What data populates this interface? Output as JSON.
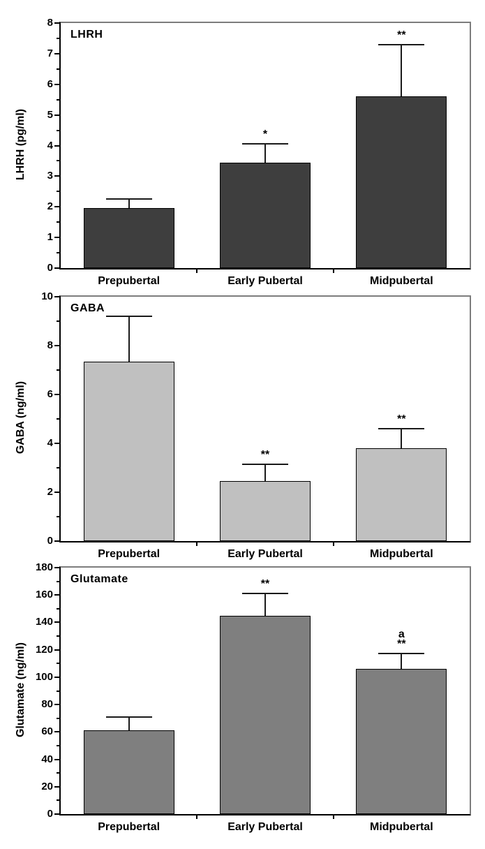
{
  "figure": {
    "background": "#ffffff",
    "text_color": "#000000",
    "frame_dark": "#000000",
    "frame_light": "#7d7d7d"
  },
  "chart_data": [
    {
      "type": "bar",
      "title": "LHRH",
      "ylabel": "LHRH (pg/ml)",
      "xlabel": "",
      "categories": [
        "Prepubertal",
        "Early Pubertal",
        "Midpubertal"
      ],
      "values": [
        1.95,
        3.45,
        5.6
      ],
      "errors_up": [
        0.3,
        0.6,
        1.7
      ],
      "annotations": [
        [],
        [
          "*"
        ],
        [
          "**"
        ]
      ],
      "bar_color": "#3e3e3e",
      "ylim": [
        0,
        8
      ],
      "ytick_major": 1,
      "ytick_minor": 0.5,
      "grid": "off",
      "legend": "none"
    },
    {
      "type": "bar",
      "title": "GABA",
      "ylabel": "GABA (ng/ml)",
      "xlabel": "",
      "categories": [
        "Prepubertal",
        "Early Pubertal",
        "Midpubertal"
      ],
      "values": [
        7.35,
        2.45,
        3.8
      ],
      "errors_up": [
        1.85,
        0.7,
        0.8
      ],
      "annotations": [
        [],
        [
          "**"
        ],
        [
          "**"
        ]
      ],
      "bar_color": "#c0c0c0",
      "ylim": [
        0,
        10
      ],
      "ytick_major": 2,
      "ytick_minor": 1,
      "grid": "off",
      "legend": "none"
    },
    {
      "type": "bar",
      "title": "Glutamate",
      "ylabel": "Glutamate (ng/ml)",
      "xlabel": "",
      "categories": [
        "Prepubertal",
        "Early Pubertal",
        "Midpubertal"
      ],
      "values": [
        61,
        145,
        106
      ],
      "errors_up": [
        10,
        16,
        11.5
      ],
      "annotations": [
        [],
        [
          "**"
        ],
        [
          "a",
          "**"
        ]
      ],
      "bar_color": "#7f7f7f",
      "ylim": [
        0,
        180
      ],
      "ytick_major": 20,
      "ytick_minor": 10,
      "grid": "off",
      "legend": "none"
    }
  ]
}
